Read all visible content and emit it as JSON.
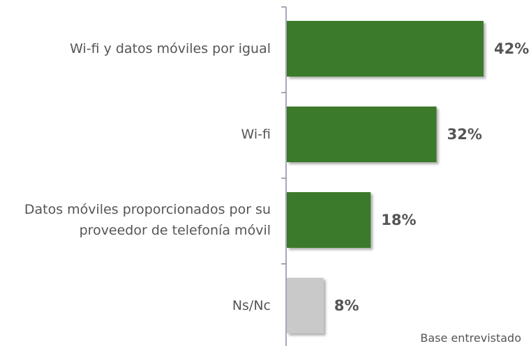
{
  "chart_data": {
    "type": "bar",
    "orientation": "horizontal",
    "categories": [
      "Wi-fi y datos móviles por igual",
      "Wi-fi",
      "Datos móviles proporcionados por su proveedor de telefonía móvil",
      "Ns/Nc"
    ],
    "values": [
      42,
      32,
      18,
      8
    ],
    "value_labels": [
      "42%",
      "32%",
      "18%",
      "8%"
    ],
    "colors": [
      "#3b7a2b",
      "#3b7a2b",
      "#3b7a2b",
      "#c9c9c9"
    ],
    "annotation": "Base entrevistado"
  }
}
